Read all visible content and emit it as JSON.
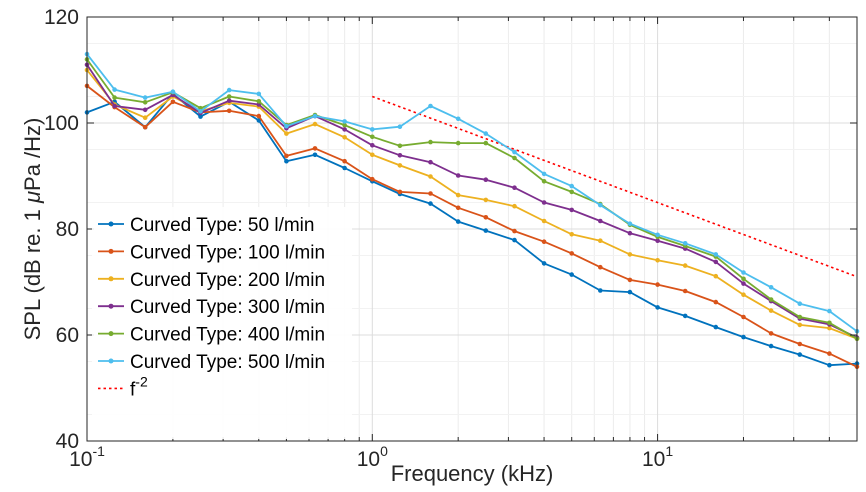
{
  "chart_data": {
    "type": "line",
    "xscale": "log",
    "xlabel": "Frequency (kHz)",
    "ylabel": "SPL (dB re. 1 μPa /Hz)",
    "ylabel_parts": [
      "SPL (dB re. 1 ",
      "μ",
      "Pa /Hz)"
    ],
    "xlim": [
      0.1,
      50
    ],
    "ylim": [
      40,
      120
    ],
    "x_ticks": [
      {
        "value": 0.1,
        "base": "10",
        "exp": "-1"
      },
      {
        "value": 1,
        "base": "10",
        "exp": "0"
      },
      {
        "value": 10,
        "base": "10",
        "exp": "1"
      }
    ],
    "y_ticks": [
      {
        "value": 40,
        "label": "40"
      },
      {
        "value": 60,
        "label": "60"
      },
      {
        "value": 80,
        "label": "80"
      },
      {
        "value": 100,
        "label": "100"
      },
      {
        "value": 120,
        "label": "120"
      }
    ],
    "grid": true,
    "legend_position": "lower-left",
    "x": [
      0.1,
      0.125,
      0.16,
      0.2,
      0.25,
      0.315,
      0.4,
      0.5,
      0.63,
      0.8,
      1.0,
      1.25,
      1.6,
      2.0,
      2.5,
      3.15,
      4.0,
      5.0,
      6.3,
      8.0,
      10.0,
      12.5,
      16.0,
      20.0,
      25.0,
      31.5,
      40.0,
      50.0
    ],
    "series": [
      {
        "name": "Curved Type: 50 l/min",
        "color": "#0072bd",
        "values": [
          102,
          104,
          99.2,
          105.5,
          101.2,
          104,
          100.5,
          92.8,
          94,
          91.5,
          89,
          86.6,
          84.8,
          81.4,
          79.7,
          77.9,
          73.5,
          71.4,
          68.4,
          68.1,
          65.2,
          63.6,
          61.5,
          59.6,
          57.9,
          56.3,
          54.3,
          54.6
        ]
      },
      {
        "name": "Curved Type: 100 l/min",
        "color": "#d95319",
        "values": [
          107,
          103,
          99.2,
          104,
          102,
          102.3,
          101.3,
          93.8,
          95.2,
          92.8,
          89.4,
          87,
          86.7,
          84,
          82.2,
          79.6,
          77.6,
          75.4,
          72.8,
          70.4,
          69.5,
          68.3,
          66.2,
          63.4,
          60.3,
          58.3,
          56.5,
          54
        ]
      },
      {
        "name": "Curved Type: 200 l/min",
        "color": "#edb120",
        "values": [
          110,
          103.5,
          101,
          105,
          102.2,
          103.8,
          103.1,
          98,
          99.8,
          97.3,
          94,
          92,
          89.9,
          86.4,
          85.5,
          84.3,
          81.5,
          79,
          77.8,
          75.2,
          74.1,
          73.1,
          71.1,
          67.6,
          64.6,
          61.9,
          61.3,
          59.3
        ]
      },
      {
        "name": "Curved Type: 300 l/min",
        "color": "#7e2f8e",
        "values": [
          111,
          103.2,
          102.5,
          105.3,
          101.9,
          104.2,
          103.5,
          99,
          101.3,
          98.8,
          95.8,
          93.9,
          92.6,
          90.1,
          89.3,
          87.8,
          85,
          83.6,
          81.5,
          79.2,
          77.8,
          76.3,
          73.8,
          69.7,
          66.4,
          63.1,
          62,
          59.5
        ]
      },
      {
        "name": "Curved Type: 400 l/min",
        "color": "#77ac30",
        "values": [
          112,
          104.8,
          103.9,
          105.8,
          102.8,
          105,
          104.1,
          99.6,
          101.5,
          99.6,
          97.4,
          95.7,
          96.4,
          96.2,
          96.2,
          93.4,
          89,
          87,
          84.7,
          80.8,
          78.5,
          76.8,
          74.8,
          70.6,
          66.7,
          63.4,
          62.3,
          59.3
        ]
      },
      {
        "name": "Curved Type: 500 l/min",
        "color": "#4dbeee",
        "values": [
          113,
          106.3,
          104.8,
          105.9,
          102.2,
          106.2,
          105.5,
          99.4,
          101.3,
          100.3,
          98.8,
          99.3,
          103.2,
          100.8,
          98,
          94.5,
          90.4,
          88.1,
          84.5,
          81,
          78.9,
          77.3,
          75.2,
          71.8,
          69,
          65.9,
          64.5,
          60.7
        ]
      }
    ],
    "reference": {
      "name_base": "f",
      "name_sup": "-2",
      "color": "#ff0000",
      "x": [
        1,
        50
      ],
      "values": [
        105,
        71
      ]
    }
  }
}
